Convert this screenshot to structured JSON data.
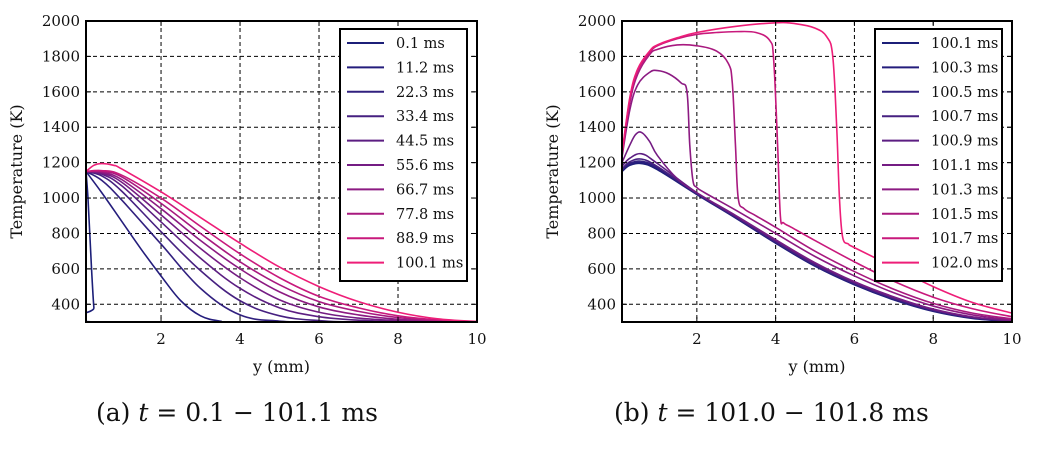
{
  "captions": [
    {
      "label": "(a)",
      "var": "t",
      "rest": " = 0.1 − 101.1 ms"
    },
    {
      "label": "(b)",
      "var": "t",
      "rest": " = 101.0 − 101.8 ms"
    }
  ],
  "chart_data": [
    {
      "id": "a",
      "type": "line",
      "title": "",
      "caption": "(a) t = 0.1 − 101.1 ms",
      "xlabel": "y (mm)",
      "ylabel": "Temperature (K)",
      "xlim": [
        0.1,
        10
      ],
      "ylim": [
        300,
        2000
      ],
      "xticks": [
        2,
        4,
        6,
        8,
        10
      ],
      "yticks": [
        400,
        600,
        800,
        1000,
        1200,
        1400,
        1600,
        1800,
        2000
      ],
      "grid": true,
      "legend_position": "top-right",
      "series": [
        {
          "name": "0.1 ms",
          "color": "#1c1f78",
          "x": [
            0.1,
            0.15,
            0.2,
            0.25,
            0.3,
            0.35,
            10
          ],
          "y": [
            1150,
            1000,
            780,
            560,
            380,
            300,
            300
          ]
        },
        {
          "name": "11.2 ms",
          "color": "#241d7c",
          "x": [
            0.1,
            0.5,
            1.0,
            1.5,
            2.0,
            2.5,
            3.0,
            3.5,
            4.0,
            10
          ],
          "y": [
            1150,
            1030,
            870,
            710,
            560,
            420,
            335,
            305,
            300,
            300
          ]
        },
        {
          "name": "22.3 ms",
          "color": "#31207f",
          "x": [
            0.1,
            0.5,
            1.0,
            2.0,
            3.0,
            4.0,
            5.0,
            6.0,
            10
          ],
          "y": [
            1150,
            1100,
            990,
            740,
            490,
            340,
            305,
            300,
            300
          ]
        },
        {
          "name": "33.4 ms",
          "color": "#462080",
          "x": [
            0.1,
            0.5,
            1.0,
            2.0,
            3.0,
            4.0,
            5.0,
            6.0,
            7.0,
            10
          ],
          "y": [
            1150,
            1125,
            1040,
            810,
            590,
            420,
            335,
            308,
            301,
            300
          ]
        },
        {
          "name": "44.5 ms",
          "color": "#5c1e82",
          "x": [
            0.1,
            0.5,
            1.0,
            2.0,
            3.0,
            4.0,
            5.0,
            6.0,
            7.0,
            8.0,
            10
          ],
          "y": [
            1150,
            1135,
            1070,
            865,
            660,
            490,
            380,
            330,
            310,
            303,
            300
          ]
        },
        {
          "name": "55.6 ms",
          "color": "#741c83",
          "x": [
            0.1,
            0.5,
            1.0,
            2.0,
            3.0,
            4.0,
            5.0,
            6.0,
            7.0,
            8.0,
            9.0,
            10
          ],
          "y": [
            1150,
            1140,
            1090,
            905,
            715,
            550,
            425,
            355,
            322,
            308,
            302,
            300
          ]
        },
        {
          "name": "66.7 ms",
          "color": "#8c1a82",
          "x": [
            0.1,
            0.5,
            1.0,
            2.0,
            3.0,
            4.0,
            5.0,
            6.0,
            7.0,
            8.0,
            9.0,
            10
          ],
          "y": [
            1150,
            1145,
            1105,
            940,
            760,
            600,
            470,
            385,
            340,
            315,
            305,
            300
          ]
        },
        {
          "name": "77.8 ms",
          "color": "#a8197f",
          "x": [
            0.1,
            0.5,
            1.0,
            2.0,
            3.0,
            4.0,
            5.0,
            6.0,
            7.0,
            8.0,
            9.0,
            10
          ],
          "y": [
            1150,
            1150,
            1120,
            970,
            800,
            640,
            510,
            415,
            360,
            325,
            308,
            301
          ]
        },
        {
          "name": "88.9 ms",
          "color": "#c8197c",
          "x": [
            0.1,
            0.5,
            1.0,
            2.0,
            3.0,
            4.0,
            5.0,
            6.0,
            7.0,
            8.0,
            9.0,
            10
          ],
          "y": [
            1150,
            1155,
            1130,
            1000,
            840,
            685,
            550,
            445,
            380,
            335,
            312,
            302
          ]
        },
        {
          "name": "100.1 ms",
          "color": "#ee1e78",
          "x": [
            0.1,
            0.3,
            0.5,
            0.8,
            1.0,
            2.0,
            3.0,
            4.0,
            5.0,
            6.0,
            7.0,
            8.0,
            9.0,
            10
          ],
          "y": [
            1150,
            1185,
            1195,
            1185,
            1165,
            1035,
            890,
            745,
            610,
            500,
            415,
            355,
            318,
            303
          ]
        }
      ]
    },
    {
      "id": "b",
      "type": "line",
      "title": "",
      "caption": "(b) t = 101.0 − 101.8 ms",
      "xlabel": "y (mm)",
      "ylabel": "Temperature (K)",
      "xlim": [
        0.1,
        10
      ],
      "ylim": [
        300,
        2000
      ],
      "xticks": [
        2,
        4,
        6,
        8,
        10
      ],
      "yticks": [
        400,
        600,
        800,
        1000,
        1200,
        1400,
        1600,
        1800,
        2000
      ],
      "grid": true,
      "legend_position": "top-right",
      "series": [
        {
          "name": "100.1 ms",
          "color": "#1c1f78",
          "x": [
            0.1,
            0.3,
            0.6,
            1.0,
            2.0,
            3.0,
            4.0,
            5.0,
            6.0,
            7.0,
            8.0,
            9.0,
            10
          ],
          "y": [
            1150,
            1185,
            1195,
            1160,
            1020,
            885,
            745,
            615,
            510,
            425,
            360,
            320,
            303
          ]
        },
        {
          "name": "100.3 ms",
          "color": "#241d7c",
          "x": [
            0.1,
            0.3,
            0.6,
            1.0,
            2.0,
            3.0,
            4.0,
            5.0,
            6.0,
            7.0,
            8.0,
            9.0,
            10
          ],
          "y": [
            1155,
            1190,
            1200,
            1165,
            1022,
            887,
            747,
            617,
            512,
            427,
            362,
            322,
            304
          ]
        },
        {
          "name": "100.5 ms",
          "color": "#31207f",
          "x": [
            0.1,
            0.3,
            0.6,
            1.0,
            2.0,
            3.0,
            4.0,
            5.0,
            6.0,
            7.0,
            8.0,
            9.0,
            10
          ],
          "y": [
            1160,
            1195,
            1208,
            1170,
            1024,
            889,
            750,
            620,
            515,
            430,
            364,
            323,
            305
          ]
        },
        {
          "name": "100.7 ms",
          "color": "#462080",
          "x": [
            0.1,
            0.3,
            0.6,
            1.0,
            2.0,
            3.0,
            4.0,
            5.0,
            6.0,
            7.0,
            8.0,
            9.0,
            10
          ],
          "y": [
            1165,
            1205,
            1220,
            1178,
            1027,
            892,
            754,
            624,
            519,
            434,
            367,
            325,
            306
          ]
        },
        {
          "name": "100.9 ms",
          "color": "#5c1e82",
          "x": [
            0.1,
            0.3,
            0.6,
            1.0,
            2.0,
            3.0,
            4.0,
            5.0,
            6.0,
            7.0,
            8.0,
            9.0,
            10
          ],
          "y": [
            1180,
            1225,
            1250,
            1195,
            1030,
            896,
            760,
            630,
            524,
            438,
            370,
            327,
            307
          ]
        },
        {
          "name": "101.1 ms",
          "color": "#741c83",
          "x": [
            0.1,
            0.3,
            0.45,
            0.6,
            0.8,
            1.0,
            1.5,
            2.0,
            3.0,
            4.0,
            5.0,
            6.0,
            7.0,
            8.0,
            9.0,
            10
          ],
          "y": [
            1200,
            1300,
            1360,
            1370,
            1320,
            1240,
            1110,
            1030,
            900,
            765,
            635,
            528,
            442,
            373,
            329,
            308
          ]
        },
        {
          "name": "101.3 ms",
          "color": "#8c1a82",
          "x": [
            0.1,
            0.3,
            0.5,
            0.8,
            1.0,
            1.3,
            1.6,
            1.75,
            1.82,
            1.9,
            2.0,
            2.2,
            3.0,
            4.0,
            5.0,
            6.0,
            7.0,
            8.0,
            9.0,
            10
          ],
          "y": [
            1230,
            1500,
            1640,
            1710,
            1720,
            1700,
            1650,
            1600,
            1300,
            1100,
            1060,
            1030,
            930,
            800,
            670,
            560,
            465,
            390,
            340,
            312
          ]
        },
        {
          "name": "101.5 ms",
          "color": "#a8197f",
          "x": [
            0.1,
            0.3,
            0.5,
            0.8,
            1.0,
            1.5,
            2.0,
            2.5,
            2.8,
            2.9,
            2.98,
            3.05,
            3.2,
            3.5,
            4.0,
            5.0,
            6.0,
            7.0,
            8.0,
            9.0,
            10
          ],
          "y": [
            1240,
            1540,
            1700,
            1810,
            1840,
            1865,
            1860,
            1830,
            1760,
            1650,
            1300,
            1000,
            940,
            900,
            835,
            700,
            585,
            485,
            405,
            350,
            318
          ]
        },
        {
          "name": "101.7 ms",
          "color": "#c8197c",
          "x": [
            0.1,
            0.3,
            0.5,
            0.8,
            1.0,
            1.5,
            2.0,
            2.5,
            3.0,
            3.5,
            3.85,
            3.95,
            4.05,
            4.12,
            4.2,
            4.4,
            5.0,
            6.0,
            7.0,
            8.0,
            9.0,
            10
          ],
          "y": [
            1245,
            1560,
            1720,
            1820,
            1860,
            1900,
            1925,
            1935,
            1940,
            1935,
            1890,
            1780,
            1300,
            900,
            860,
            835,
            760,
            640,
            530,
            440,
            375,
            330
          ]
        },
        {
          "name": "102.0 ms",
          "color": "#ee1e78",
          "x": [
            0.1,
            0.3,
            0.5,
            0.8,
            1.0,
            1.5,
            2.0,
            3.0,
            4.0,
            4.5,
            5.0,
            5.3,
            5.45,
            5.55,
            5.62,
            5.7,
            5.85,
            6.0,
            7.0,
            8.0,
            9.0,
            10
          ],
          "y": [
            1250,
            1570,
            1730,
            1830,
            1865,
            1905,
            1935,
            1970,
            1990,
            1985,
            1960,
            1910,
            1800,
            1400,
            1000,
            780,
            740,
            720,
            610,
            500,
            410,
            350
          ]
        }
      ]
    }
  ]
}
